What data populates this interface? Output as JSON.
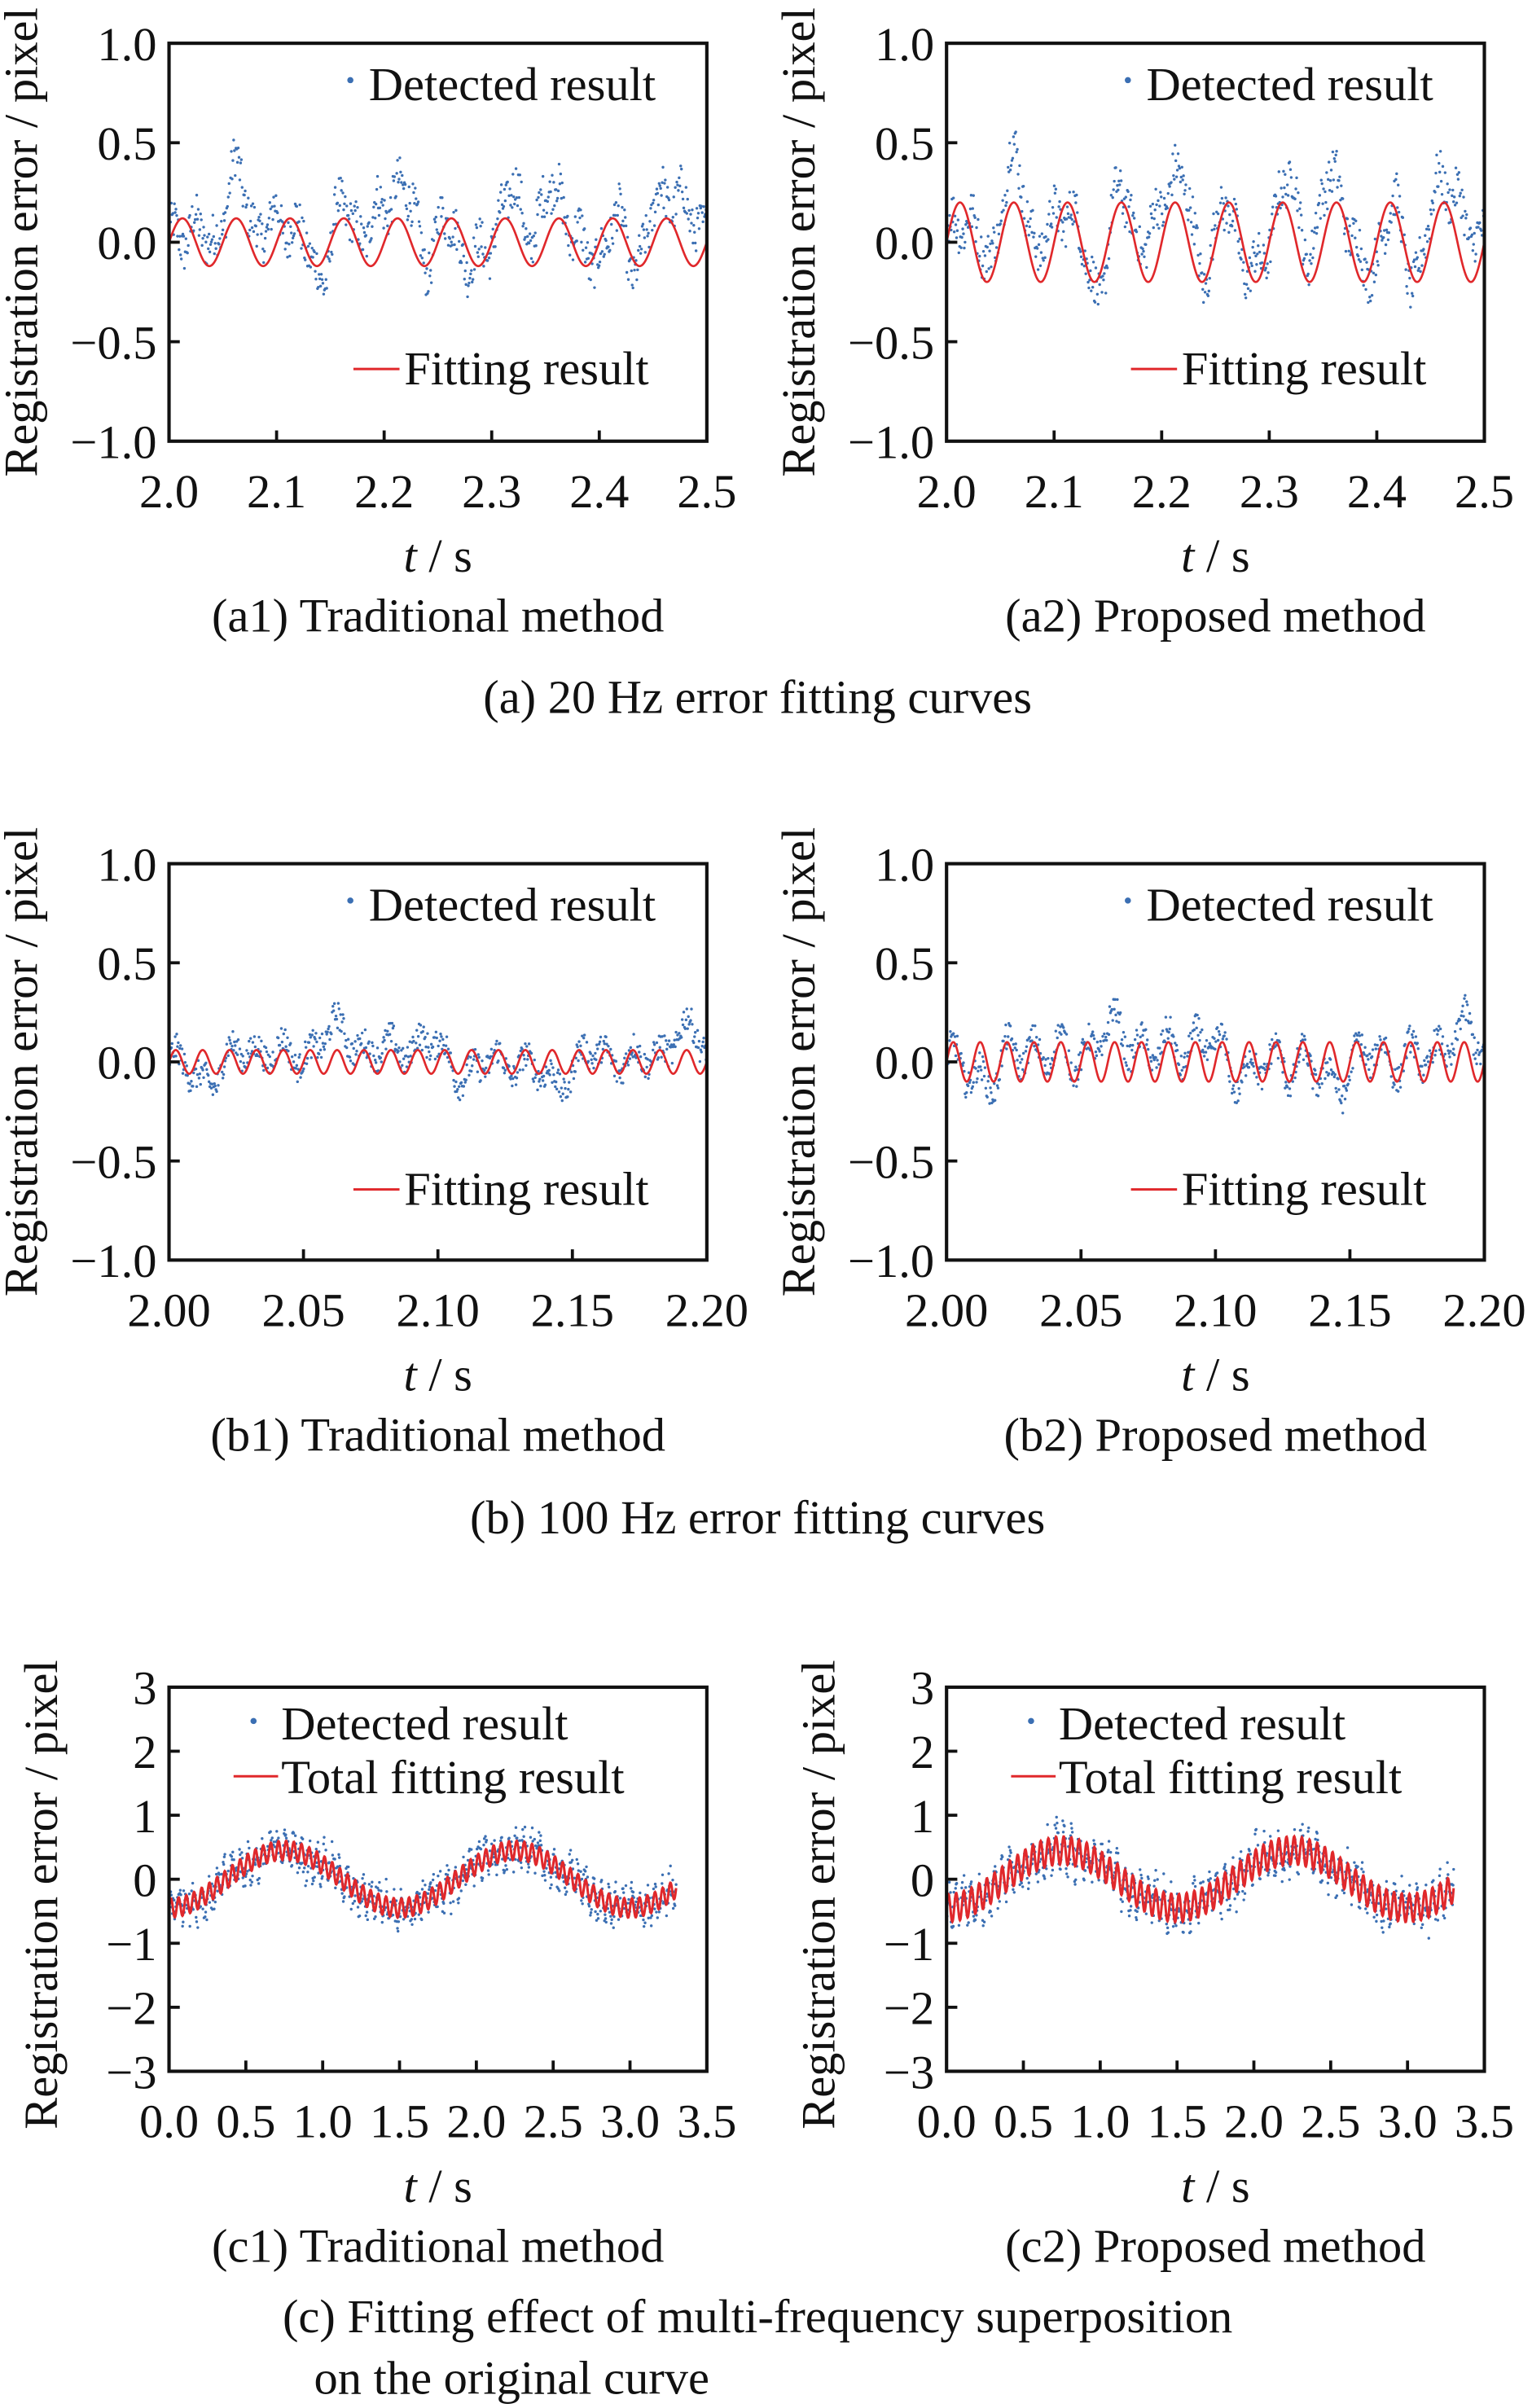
{
  "colors": {
    "detected": "#3b6fb3",
    "fit": "#e0282b",
    "axes": "#111111"
  },
  "chart_data": [
    {
      "id": "a1",
      "type": "scatter+line",
      "caption": "(a1) Traditional method",
      "xlabel_italic": "t",
      "xlabel_rest": " / s",
      "ylabel": "Registration error / pixel",
      "xlim": [
        2.0,
        2.5
      ],
      "ylim": [
        -1.0,
        1.0
      ],
      "xticks": [
        "2.0",
        "2.1",
        "2.2",
        "2.3",
        "2.4",
        "2.5"
      ],
      "yticks": [
        "−1.0",
        "−0.5",
        "0.0",
        "0.5",
        "1.0"
      ],
      "legend": {
        "detected": "Detected result",
        "fit": "Fitting result"
      },
      "legend_layout": "split",
      "fit": {
        "frequency_hz": 20,
        "amplitude": 0.12
      },
      "detected_range": [
        -0.45,
        0.6
      ]
    },
    {
      "id": "a2",
      "type": "scatter+line",
      "caption": "(a2) Proposed method",
      "xlabel_italic": "t",
      "xlabel_rest": " / s",
      "ylabel": "Registration error / pixel",
      "xlim": [
        2.0,
        2.5
      ],
      "ylim": [
        -1.0,
        1.0
      ],
      "xticks": [
        "2.0",
        "2.1",
        "2.2",
        "2.3",
        "2.4",
        "2.5"
      ],
      "yticks": [
        "−1.0",
        "−0.5",
        "0.0",
        "0.5",
        "1.0"
      ],
      "legend": {
        "detected": "Detected result",
        "fit": "Fitting result"
      },
      "legend_layout": "split",
      "fit": {
        "frequency_hz": 20,
        "amplitude": 0.2
      },
      "detected_range": [
        -0.5,
        0.5
      ]
    },
    {
      "id": "b1",
      "type": "scatter+line",
      "caption": "(b1) Traditional method",
      "xlabel_italic": "t",
      "xlabel_rest": " / s",
      "ylabel": "Registration error / pixel",
      "xlim": [
        2.0,
        2.2
      ],
      "ylim": [
        -1.0,
        1.0
      ],
      "xticks": [
        "2.00",
        "2.05",
        "2.10",
        "2.15",
        "2.20"
      ],
      "yticks": [
        "−1.0",
        "−0.5",
        "0.0",
        "0.5",
        "1.0"
      ],
      "legend": {
        "detected": "Detected result",
        "fit": "Fitting result"
      },
      "legend_layout": "split",
      "fit": {
        "frequency_hz": 100,
        "amplitude": 0.06
      },
      "detected_range": [
        -0.2,
        0.35
      ]
    },
    {
      "id": "b2",
      "type": "scatter+line",
      "caption": "(b2) Proposed method",
      "xlabel_italic": "t",
      "xlabel_rest": " / s",
      "ylabel": "Registration error / pixel",
      "xlim": [
        2.0,
        2.2
      ],
      "ylim": [
        -1.0,
        1.0
      ],
      "xticks": [
        "2.00",
        "2.05",
        "2.10",
        "2.15",
        "2.20"
      ],
      "yticks": [
        "−1.0",
        "−0.5",
        "0.0",
        "0.5",
        "1.0"
      ],
      "legend": {
        "detected": "Detected result",
        "fit": "Fitting result"
      },
      "legend_layout": "split",
      "fit": {
        "frequency_hz": 100,
        "amplitude": 0.1
      },
      "detected_range": [
        -0.25,
        0.25
      ]
    },
    {
      "id": "c1",
      "type": "scatter+line",
      "caption": "(c1) Traditional method",
      "xlabel_italic": "t",
      "xlabel_rest": " / s",
      "ylabel": "Registration error / pixel",
      "xlim": [
        0.0,
        3.5
      ],
      "ylim": [
        -3,
        3
      ],
      "xticks": [
        "0.0",
        "0.5",
        "1.0",
        "1.5",
        "2.0",
        "2.5",
        "3.0",
        "3.5"
      ],
      "yticks": [
        "−3",
        "−2",
        "−1",
        "0",
        "1",
        "2",
        "3"
      ],
      "legend": {
        "detected": "Detected result",
        "fit": "Total fitting result"
      },
      "legend_layout": "stacked",
      "fit": {
        "slow_period_s": 1.5,
        "slow_amplitude": 0.45,
        "ripple_amplitude": 0.15,
        "t_end": 3.3
      },
      "detected_range": [
        -1.0,
        1.0
      ]
    },
    {
      "id": "c2",
      "type": "scatter+line",
      "caption": "(c2) Proposed method",
      "xlabel_italic": "t",
      "xlabel_rest": " / s",
      "ylabel": "Registration error / pixel",
      "xlim": [
        0.0,
        3.5
      ],
      "ylim": [
        -3,
        3
      ],
      "xticks": [
        "0.0",
        "0.5",
        "1.0",
        "1.5",
        "2.0",
        "2.5",
        "3.0",
        "3.5"
      ],
      "yticks": [
        "−3",
        "−2",
        "−1",
        "0",
        "1",
        "2",
        "3"
      ],
      "legend": {
        "detected": "Detected result",
        "fit": "Total fitting result"
      },
      "legend_layout": "stacked",
      "fit": {
        "slow_period_s": 1.5,
        "slow_amplitude": 0.45,
        "ripple_amplitude": 0.22,
        "t_end": 3.3
      },
      "detected_range": [
        -1.0,
        1.0
      ]
    }
  ],
  "group_captions": {
    "a": "(a) 20 Hz error fitting curves",
    "b": "(b) 100 Hz error fitting curves",
    "c_line1": "(c) Fitting effect of multi-frequency superposition",
    "c_line2": "on the original curve"
  }
}
